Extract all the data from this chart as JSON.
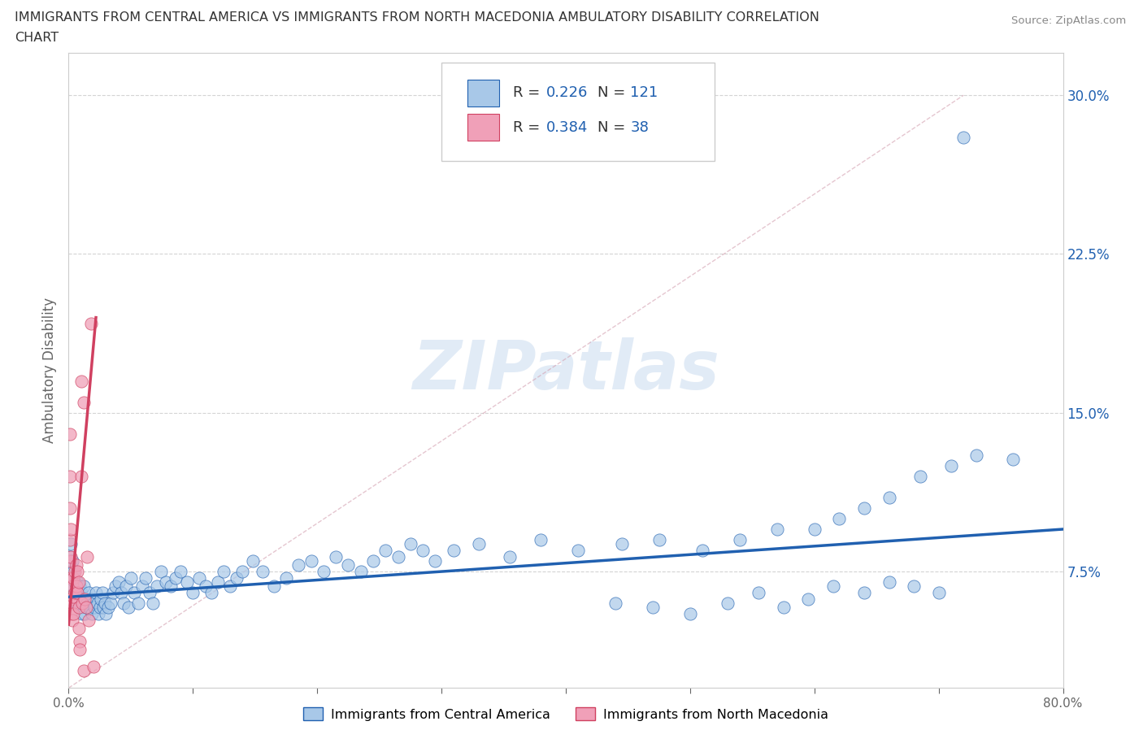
{
  "title_line1": "IMMIGRANTS FROM CENTRAL AMERICA VS IMMIGRANTS FROM NORTH MACEDONIA AMBULATORY DISABILITY CORRELATION",
  "title_line2": "CHART",
  "source": "Source: ZipAtlas.com",
  "ylabel": "Ambulatory Disability",
  "xlim": [
    0.0,
    0.8
  ],
  "ylim": [
    0.02,
    0.32
  ],
  "xtick_positions": [
    0.0,
    0.1,
    0.2,
    0.3,
    0.4,
    0.5,
    0.6,
    0.7,
    0.8
  ],
  "xticklabels": [
    "0.0%",
    "",
    "",
    "",
    "",
    "",
    "",
    "",
    "80.0%"
  ],
  "yticks_right": [
    0.075,
    0.15,
    0.225,
    0.3
  ],
  "ytick_labels_right": [
    "7.5%",
    "15.0%",
    "22.5%",
    "30.0%"
  ],
  "color_blue": "#a8c8e8",
  "color_pink": "#f0a0b8",
  "line_blue": "#2060b0",
  "line_pink": "#d04060",
  "R_blue": 0.226,
  "N_blue": 121,
  "R_pink": 0.384,
  "N_pink": 38,
  "watermark": "ZIPatlas",
  "legend_label_blue": "Immigrants from Central America",
  "legend_label_pink": "Immigrants from North Macedonia",
  "blue_points_x": [
    0.001,
    0.002,
    0.002,
    0.003,
    0.003,
    0.004,
    0.004,
    0.005,
    0.005,
    0.006,
    0.006,
    0.007,
    0.007,
    0.008,
    0.008,
    0.009,
    0.009,
    0.01,
    0.01,
    0.011,
    0.011,
    0.012,
    0.012,
    0.013,
    0.013,
    0.014,
    0.015,
    0.016,
    0.017,
    0.018,
    0.019,
    0.02,
    0.021,
    0.022,
    0.023,
    0.024,
    0.025,
    0.026,
    0.027,
    0.028,
    0.029,
    0.03,
    0.032,
    0.034,
    0.036,
    0.038,
    0.04,
    0.042,
    0.044,
    0.046,
    0.048,
    0.05,
    0.053,
    0.056,
    0.059,
    0.062,
    0.065,
    0.068,
    0.071,
    0.074,
    0.078,
    0.082,
    0.086,
    0.09,
    0.095,
    0.1,
    0.105,
    0.11,
    0.115,
    0.12,
    0.125,
    0.13,
    0.135,
    0.14,
    0.148,
    0.156,
    0.165,
    0.175,
    0.185,
    0.195,
    0.205,
    0.215,
    0.225,
    0.235,
    0.245,
    0.255,
    0.265,
    0.275,
    0.285,
    0.295,
    0.31,
    0.33,
    0.355,
    0.38,
    0.41,
    0.445,
    0.475,
    0.51,
    0.54,
    0.57,
    0.6,
    0.62,
    0.64,
    0.66,
    0.685,
    0.71,
    0.73,
    0.76,
    0.44,
    0.47,
    0.5,
    0.53,
    0.555,
    0.575,
    0.595,
    0.615,
    0.64,
    0.66,
    0.68,
    0.7,
    0.72
  ],
  "blue_points_y": [
    0.082,
    0.078,
    0.088,
    0.072,
    0.08,
    0.068,
    0.075,
    0.065,
    0.07,
    0.06,
    0.068,
    0.062,
    0.07,
    0.058,
    0.065,
    0.06,
    0.068,
    0.058,
    0.065,
    0.055,
    0.062,
    0.06,
    0.068,
    0.055,
    0.062,
    0.058,
    0.06,
    0.065,
    0.058,
    0.062,
    0.055,
    0.06,
    0.058,
    0.065,
    0.06,
    0.055,
    0.058,
    0.062,
    0.065,
    0.058,
    0.06,
    0.055,
    0.058,
    0.06,
    0.065,
    0.068,
    0.07,
    0.065,
    0.06,
    0.068,
    0.058,
    0.072,
    0.065,
    0.06,
    0.068,
    0.072,
    0.065,
    0.06,
    0.068,
    0.075,
    0.07,
    0.068,
    0.072,
    0.075,
    0.07,
    0.065,
    0.072,
    0.068,
    0.065,
    0.07,
    0.075,
    0.068,
    0.072,
    0.075,
    0.08,
    0.075,
    0.068,
    0.072,
    0.078,
    0.08,
    0.075,
    0.082,
    0.078,
    0.075,
    0.08,
    0.085,
    0.082,
    0.088,
    0.085,
    0.08,
    0.085,
    0.088,
    0.082,
    0.09,
    0.085,
    0.088,
    0.09,
    0.085,
    0.09,
    0.095,
    0.095,
    0.1,
    0.105,
    0.11,
    0.12,
    0.125,
    0.13,
    0.128,
    0.06,
    0.058,
    0.055,
    0.06,
    0.065,
    0.058,
    0.062,
    0.068,
    0.065,
    0.07,
    0.068,
    0.065,
    0.28
  ],
  "pink_points_x": [
    0.001,
    0.001,
    0.001,
    0.001,
    0.001,
    0.002,
    0.002,
    0.002,
    0.002,
    0.002,
    0.003,
    0.003,
    0.003,
    0.004,
    0.004,
    0.004,
    0.005,
    0.005,
    0.006,
    0.006,
    0.007,
    0.007,
    0.008,
    0.008,
    0.009,
    0.01,
    0.01,
    0.011,
    0.012,
    0.013,
    0.014,
    0.015,
    0.016,
    0.018,
    0.02,
    0.012,
    0.008,
    0.009
  ],
  "pink_points_y": [
    0.14,
    0.12,
    0.105,
    0.09,
    0.08,
    0.095,
    0.082,
    0.072,
    0.062,
    0.055,
    0.068,
    0.06,
    0.052,
    0.072,
    0.063,
    0.055,
    0.075,
    0.065,
    0.078,
    0.068,
    0.075,
    0.065,
    0.07,
    0.058,
    0.042,
    0.165,
    0.12,
    0.06,
    0.028,
    0.062,
    0.058,
    0.082,
    0.052,
    0.192,
    0.03,
    0.155,
    0.048,
    0.038
  ]
}
